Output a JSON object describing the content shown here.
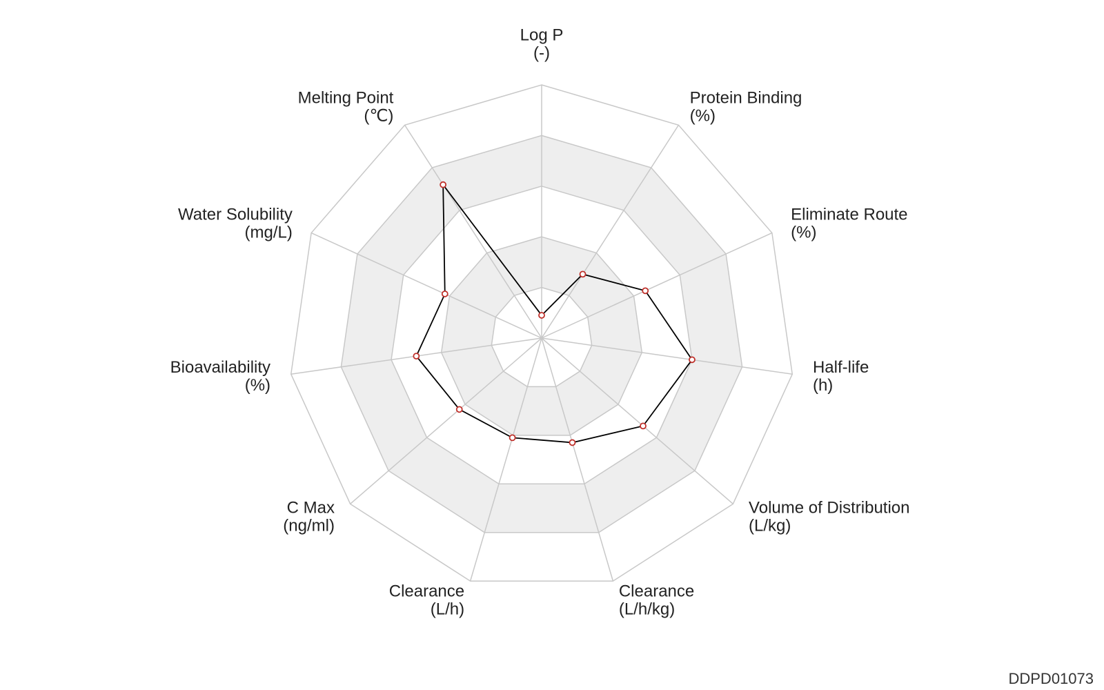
{
  "chart_data": {
    "type": "radar",
    "indicators": [
      {
        "name": "Log P",
        "unit": "(-)"
      },
      {
        "name": "Protein Binding",
        "unit": "(%)"
      },
      {
        "name": "Eliminate Route",
        "unit": "(%)"
      },
      {
        "name": "Half-life",
        "unit": "(h)"
      },
      {
        "name": "Volume of Distribution",
        "unit": "(L/kg)"
      },
      {
        "name": "Clearance",
        "unit": "(L/h/kg)"
      },
      {
        "name": "Clearance",
        "unit": "(L/h)"
      },
      {
        "name": "C Max",
        "unit": "(ng/ml)"
      },
      {
        "name": "Bioavailability",
        "unit": "(%)"
      },
      {
        "name": "Water Solubility",
        "unit": "(mg/L)"
      },
      {
        "name": "Melting Point",
        "unit": "(℃)"
      }
    ],
    "series": [
      {
        "color": "#000000",
        "point_color": "#c0302a",
        "values": [
          0.09,
          0.3,
          0.45,
          0.6,
          0.53,
          0.43,
          0.41,
          0.43,
          0.5,
          0.42,
          0.72
        ]
      }
    ],
    "ylim": [
      0,
      1
    ],
    "yticks": [
      0.2,
      0.4,
      0.6,
      0.8,
      1
    ],
    "split_area_colors": [
      "#ffffff",
      "#eeeeee"
    ],
    "footer": "DDPD01073"
  }
}
